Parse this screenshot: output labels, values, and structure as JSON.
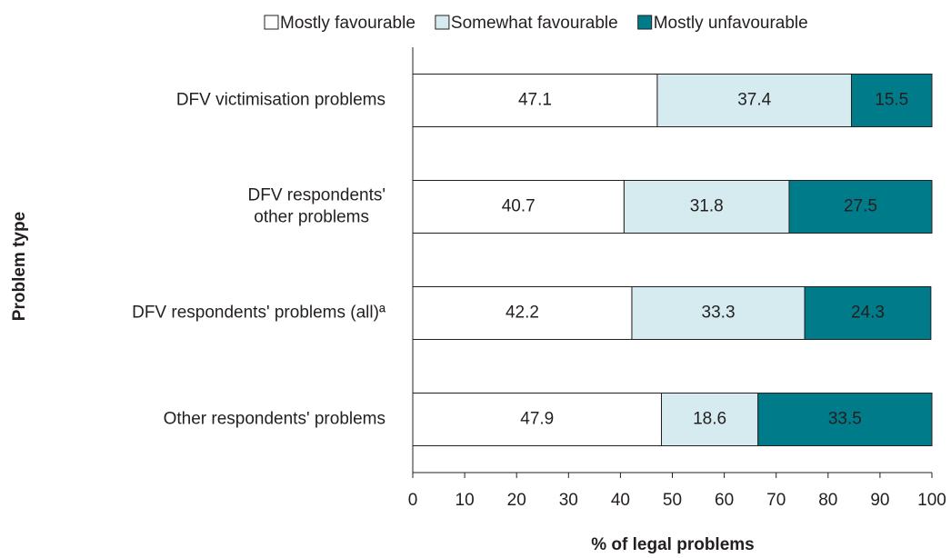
{
  "chart_data": {
    "type": "stacked-bar-horizontal",
    "categories": [
      "DFV victimisation problems",
      "DFV respondents'\nother problems",
      "DFV respondents' problems (all)ª",
      "Other respondents' problems"
    ],
    "series": [
      {
        "name": "Mostly favourable",
        "color": "#ffffff",
        "values": [
          47.1,
          40.7,
          42.2,
          47.9
        ]
      },
      {
        "name": "Somewhat favourable",
        "color": "#d5ebef",
        "values": [
          37.4,
          31.8,
          33.3,
          18.6
        ]
      },
      {
        "name": "Mostly unfavourable",
        "color": "#007b8a",
        "values": [
          15.5,
          27.5,
          24.3,
          33.5
        ]
      }
    ],
    "xlabel": "% of legal problems",
    "ylabel": "Problem type",
    "xlim": [
      0,
      100
    ],
    "xticks": [
      0,
      10,
      20,
      30,
      40,
      50,
      60,
      70,
      80,
      90,
      100
    ],
    "legend": "top"
  }
}
